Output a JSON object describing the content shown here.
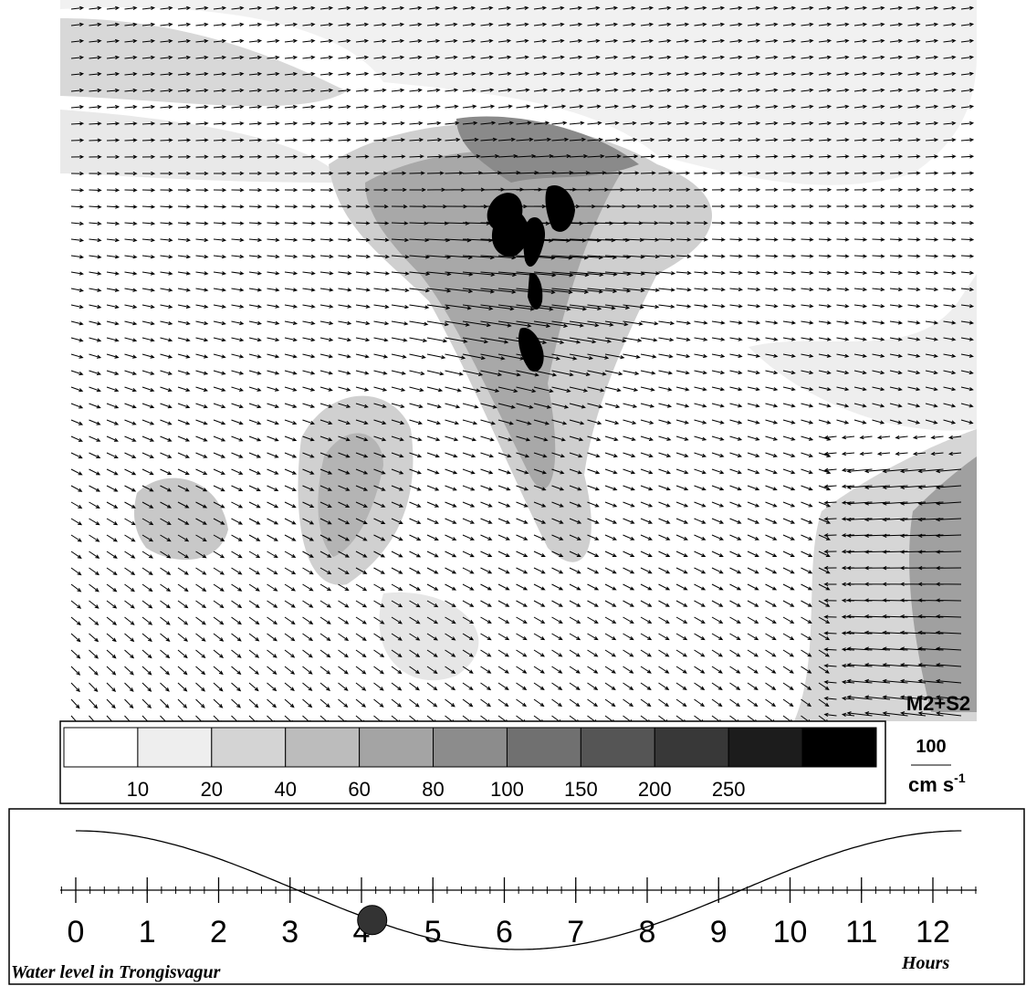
{
  "legend": {
    "title": "M2+S2",
    "levels": [
      10,
      20,
      40,
      60,
      80,
      100,
      150,
      200,
      250
    ],
    "colors": [
      "#ffffff",
      "#eeeeee",
      "#d4d4d4",
      "#bcbcbc",
      "#a4a4a4",
      "#8c8c8c",
      "#707070",
      "#555555",
      "#383838",
      "#1c1c1c",
      "#000000"
    ],
    "scale_value": 100,
    "units": "cm s",
    "units_exponent": "-1"
  },
  "timeline": {
    "xlim": [
      0,
      12
    ],
    "xticks": [
      0,
      1,
      2,
      3,
      4,
      5,
      6,
      7,
      8,
      9,
      10,
      11,
      12
    ],
    "current_hour": 4.15,
    "caption": "Water level in Trongisvagur",
    "axis_label": "Hours"
  }
}
